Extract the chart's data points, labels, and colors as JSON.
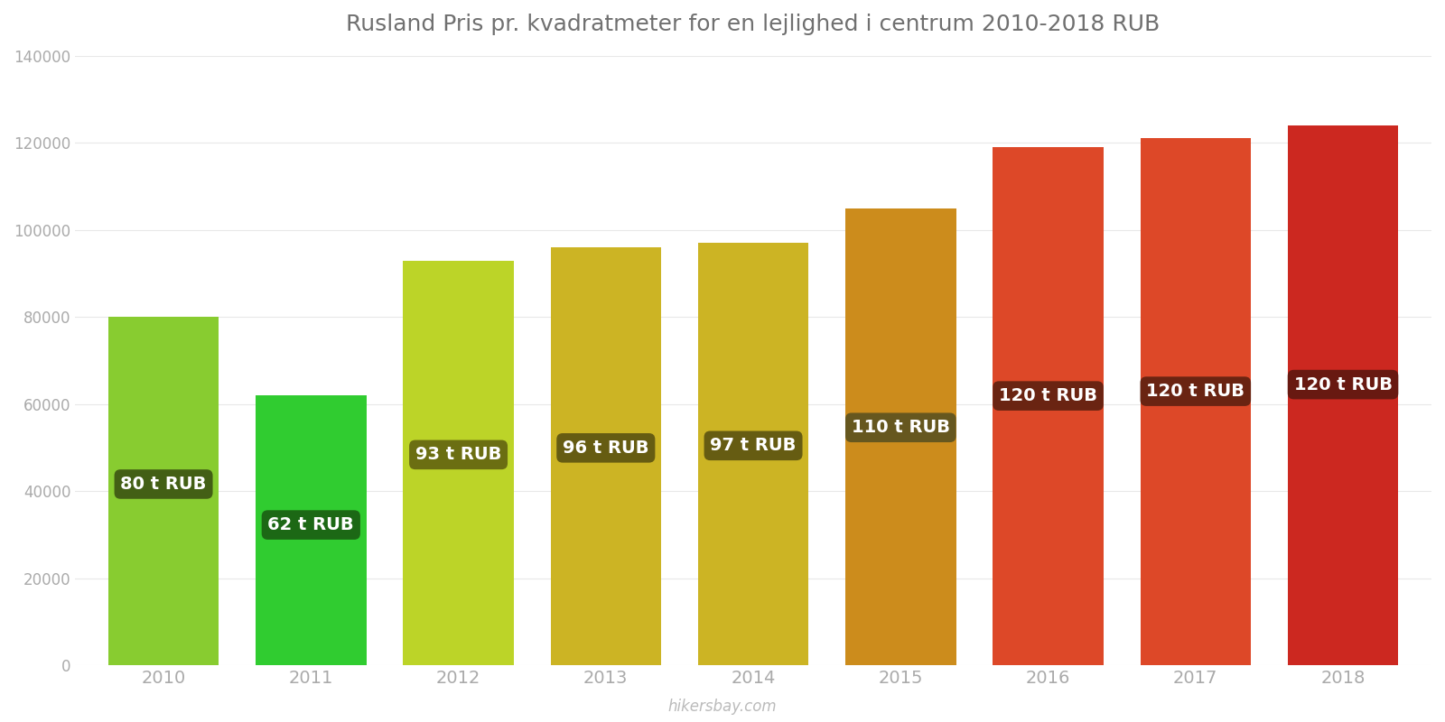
{
  "title": "Rusland Pris pr. kvadratmeter for en lejlighed i centrum 2010-2018 RUB",
  "years": [
    2010,
    2011,
    2012,
    2013,
    2014,
    2015,
    2016,
    2017,
    2018
  ],
  "values": [
    80000,
    62000,
    93000,
    96000,
    97000,
    105000,
    119000,
    121000,
    124000
  ],
  "labels": [
    "80 t RUB",
    "62 t RUB",
    "93 t RUB",
    "96 t RUB",
    "97 t RUB",
    "110 t RUB",
    "120 t RUB",
    "120 t RUB",
    "120 t RUB"
  ],
  "bar_colors": [
    "#88cc30",
    "#30cc30",
    "#bcd428",
    "#ccb424",
    "#ccb424",
    "#cc8c1c",
    "#dd4828",
    "#dd4828",
    "#cc2820"
  ],
  "label_box_colors": [
    "#3a5012",
    "#1a5a12",
    "#606010",
    "#585010",
    "#585010",
    "#585020",
    "#5a2010",
    "#5a2010",
    "#5a1810"
  ],
  "ylim": [
    0,
    140000
  ],
  "yticks": [
    0,
    20000,
    40000,
    60000,
    80000,
    100000,
    120000,
    140000
  ],
  "title_color": "#707070",
  "axis_color": "#aaaaaa",
  "watermark": "hikersbay.com",
  "background_color": "#ffffff",
  "bar_width": 0.75
}
